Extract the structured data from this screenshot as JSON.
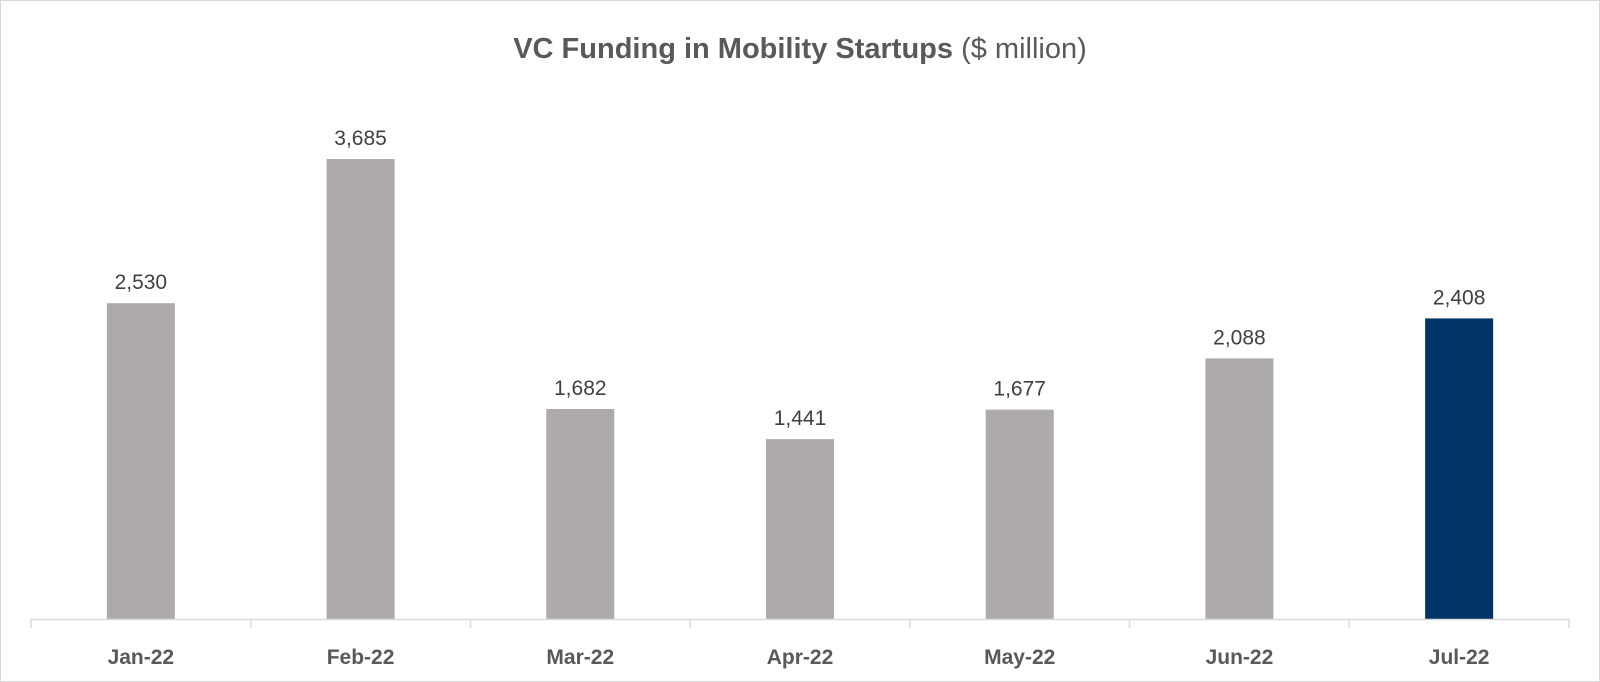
{
  "chart_data": {
    "type": "bar",
    "title": "VC Funding in Mobility Startups",
    "title_unit": "($ million)",
    "categories": [
      "Jan-22",
      "Feb-22",
      "Mar-22",
      "Apr-22",
      "May-22",
      "Jun-22",
      "Jul-22"
    ],
    "values": [
      2530,
      3685,
      1682,
      1441,
      1677,
      2088,
      2408
    ],
    "value_labels": [
      "2,530",
      "3,685",
      "1,682",
      "1,441",
      "1,677",
      "2,088",
      "2,408"
    ],
    "colors": {
      "default": "#aeaaaa",
      "highlight": "#003366"
    },
    "highlight_index": 6,
    "grid": false,
    "ylim": [
      0,
      4000
    ]
  }
}
